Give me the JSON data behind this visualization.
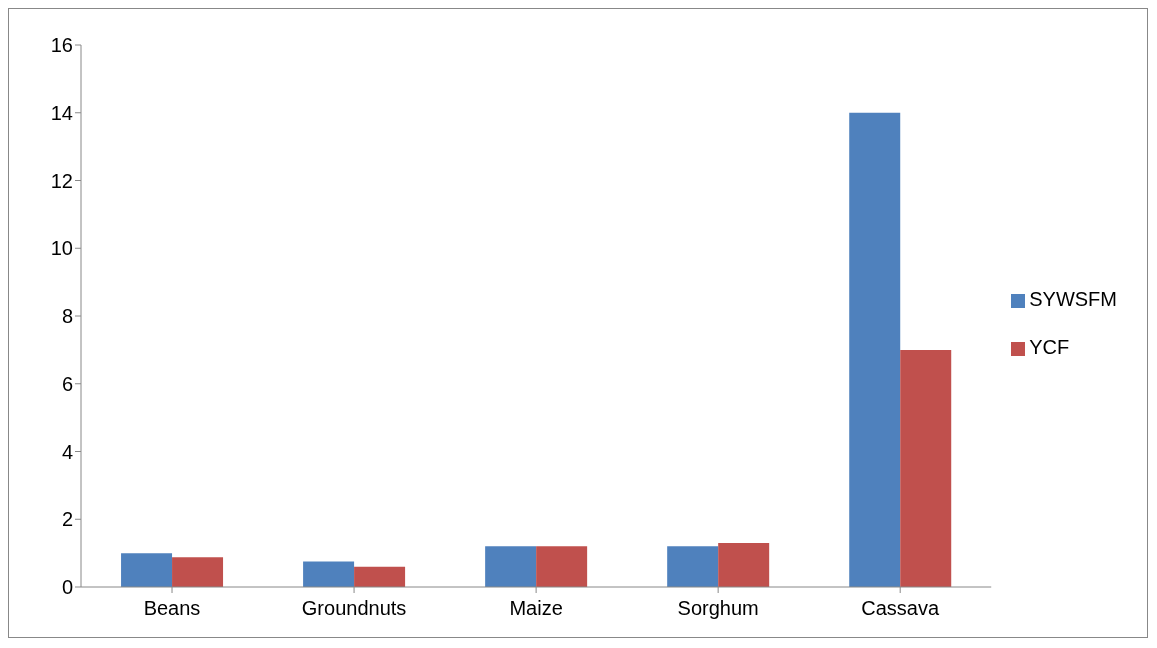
{
  "chart_data": {
    "type": "bar",
    "categories": [
      "Beans",
      "Groundnuts",
      "Maize",
      "Sorghum",
      "Cassava"
    ],
    "series": [
      {
        "name": "SYWSFM",
        "color": "#4f81bd",
        "values": [
          1.0,
          0.75,
          1.2,
          1.2,
          14
        ]
      },
      {
        "name": "YCF",
        "color": "#c0504d",
        "values": [
          0.88,
          0.6,
          1.2,
          1.3,
          7
        ]
      }
    ],
    "ylim": [
      0,
      16
    ],
    "yticks": [
      0,
      2,
      4,
      6,
      8,
      10,
      12,
      14,
      16
    ],
    "grid": false,
    "legend": "right"
  }
}
